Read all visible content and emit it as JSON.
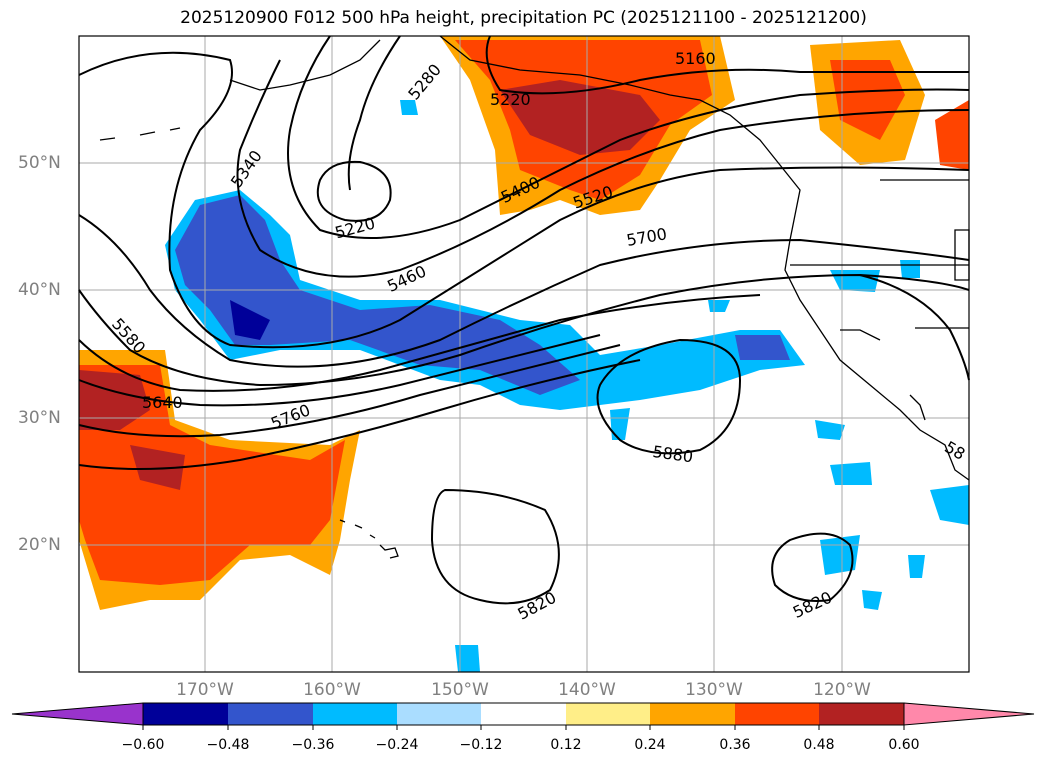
{
  "title": "2025120900 F012 500 hPa height, precipitation PC (2025121100 - 2025121200)",
  "lat_labels": [
    "50°N",
    "40°N",
    "30°N",
    "20°N"
  ],
  "lon_labels": [
    "170°W",
    "160°W",
    "150°W",
    "140°W",
    "130°W",
    "120°W"
  ],
  "contour_labels": [
    "5160",
    "5220",
    "5280",
    "5340",
    "5220",
    "5400",
    "5520",
    "5460",
    "5700",
    "5580",
    "5640",
    "5760",
    "5880",
    "5820",
    "5820",
    "58"
  ],
  "colorbar": {
    "ticks": [
      "−0.60",
      "−0.48",
      "−0.36",
      "−0.24",
      "−0.12",
      "0.12",
      "0.24",
      "0.36",
      "0.48",
      "0.60"
    ],
    "colors": [
      "#9933cc",
      "#000099",
      "#3355cc",
      "#00bbff",
      "#aaddff",
      "#ffffff",
      "#ffee88",
      "#ffa500",
      "#ff4400",
      "#b22222",
      "#ff88aa"
    ]
  },
  "colors": {
    "coastline": "#000000",
    "contour": "#000000",
    "grid": "#aaaaaa"
  }
}
